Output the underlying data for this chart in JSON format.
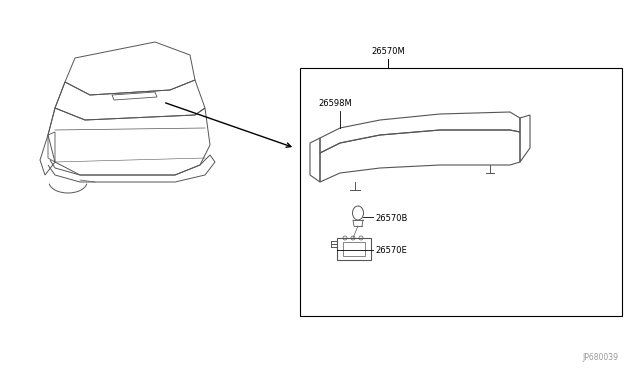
{
  "bg_color": "#ffffff",
  "line_color": "#000000",
  "dc": "#555555",
  "label_26570M": "26570M",
  "label_26598M": "26598M",
  "label_26570B": "26570B",
  "label_26570E": "26570E",
  "footer": "JP680039",
  "label_fontsize": 6.0,
  "footer_fontsize": 5.5
}
